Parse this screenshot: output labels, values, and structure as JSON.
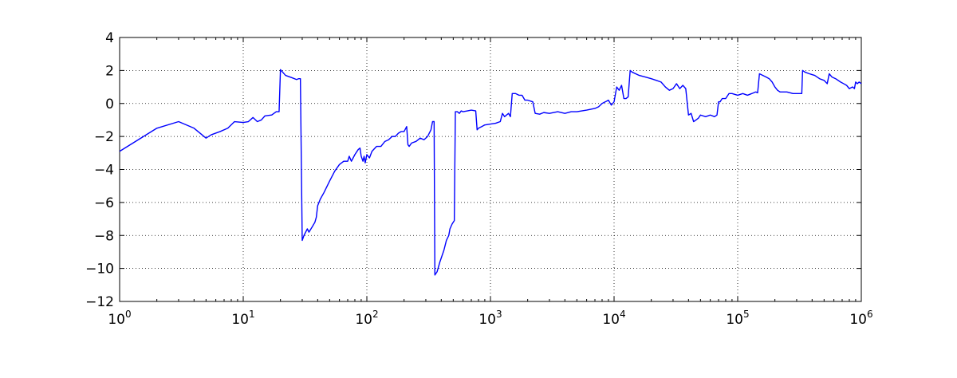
{
  "chart_data": {
    "type": "line",
    "xscale": "log",
    "xlim": [
      1,
      1000000
    ],
    "ylim": [
      -12,
      4
    ],
    "grid": true,
    "title": "",
    "xlabel": "",
    "ylabel": "",
    "line_color": "#0000ff",
    "x_ticks": [
      {
        "value": 1,
        "base": "10",
        "exp": "0"
      },
      {
        "value": 10,
        "base": "10",
        "exp": "1"
      },
      {
        "value": 100,
        "base": "10",
        "exp": "2"
      },
      {
        "value": 1000,
        "base": "10",
        "exp": "3"
      },
      {
        "value": 10000,
        "base": "10",
        "exp": "4"
      },
      {
        "value": 100000,
        "base": "10",
        "exp": "5"
      },
      {
        "value": 1000000,
        "base": "10",
        "exp": "6"
      }
    ],
    "y_ticks": [
      {
        "value": 4,
        "label": "4"
      },
      {
        "value": 2,
        "label": "2"
      },
      {
        "value": 0,
        "label": "0"
      },
      {
        "value": -2,
        "label": "−2"
      },
      {
        "value": -4,
        "label": "−4"
      },
      {
        "value": -6,
        "label": "−6"
      },
      {
        "value": -8,
        "label": "−8"
      },
      {
        "value": -10,
        "label": "−10"
      },
      {
        "value": -12,
        "label": "−12"
      }
    ],
    "series": [
      {
        "points": [
          [
            1,
            -2.9
          ],
          [
            2,
            -1.5
          ],
          [
            3,
            -1.1
          ],
          [
            4,
            -1.5
          ],
          [
            5,
            -2.1
          ],
          [
            5.5,
            -1.9
          ],
          [
            6.5,
            -1.7
          ],
          [
            7.5,
            -1.5
          ],
          [
            8.5,
            -1.1
          ],
          [
            10,
            -1.15
          ],
          [
            11,
            -1.1
          ],
          [
            12,
            -0.85
          ],
          [
            13,
            -1.1
          ],
          [
            14,
            -1.0
          ],
          [
            15,
            -0.75
          ],
          [
            17,
            -0.7
          ],
          [
            18.5,
            -0.5
          ],
          [
            19.5,
            -0.5
          ],
          [
            20,
            2.05
          ],
          [
            22,
            1.7
          ],
          [
            25,
            1.55
          ],
          [
            27,
            1.45
          ],
          [
            28,
            1.5
          ],
          [
            29,
            1.5
          ],
          [
            30,
            -8.3
          ],
          [
            31,
            -8.0
          ],
          [
            33,
            -7.6
          ],
          [
            34,
            -7.8
          ],
          [
            36,
            -7.5
          ],
          [
            38,
            -7.2
          ],
          [
            39,
            -6.9
          ],
          [
            40,
            -6.2
          ],
          [
            42,
            -5.8
          ],
          [
            45,
            -5.4
          ],
          [
            50,
            -4.7
          ],
          [
            55,
            -4.1
          ],
          [
            60,
            -3.7
          ],
          [
            65,
            -3.5
          ],
          [
            70,
            -3.5
          ],
          [
            72,
            -3.2
          ],
          [
            75,
            -3.5
          ],
          [
            80,
            -3.1
          ],
          [
            85,
            -2.8
          ],
          [
            88,
            -2.7
          ],
          [
            90,
            -3.2
          ],
          [
            93,
            -3.5
          ],
          [
            95,
            -3.2
          ],
          [
            97,
            -3.6
          ],
          [
            100,
            -3.1
          ],
          [
            105,
            -3.3
          ],
          [
            110,
            -2.9
          ],
          [
            120,
            -2.6
          ],
          [
            130,
            -2.6
          ],
          [
            140,
            -2.3
          ],
          [
            150,
            -2.2
          ],
          [
            160,
            -2.0
          ],
          [
            170,
            -2.0
          ],
          [
            180,
            -1.8
          ],
          [
            190,
            -1.7
          ],
          [
            200,
            -1.7
          ],
          [
            210,
            -1.4
          ],
          [
            215,
            -2.5
          ],
          [
            220,
            -2.6
          ],
          [
            230,
            -2.4
          ],
          [
            250,
            -2.3
          ],
          [
            270,
            -2.1
          ],
          [
            290,
            -2.2
          ],
          [
            310,
            -2.0
          ],
          [
            330,
            -1.6
          ],
          [
            340,
            -1.1
          ],
          [
            350,
            -1.1
          ],
          [
            355,
            -10.4
          ],
          [
            370,
            -10.2
          ],
          [
            390,
            -9.6
          ],
          [
            420,
            -8.9
          ],
          [
            440,
            -8.3
          ],
          [
            460,
            -8.0
          ],
          [
            470,
            -7.6
          ],
          [
            490,
            -7.3
          ],
          [
            510,
            -7.1
          ],
          [
            520,
            -0.5
          ],
          [
            540,
            -0.5
          ],
          [
            560,
            -0.6
          ],
          [
            580,
            -0.45
          ],
          [
            600,
            -0.5
          ],
          [
            650,
            -0.45
          ],
          [
            700,
            -0.4
          ],
          [
            760,
            -0.45
          ],
          [
            780,
            -1.6
          ],
          [
            800,
            -1.5
          ],
          [
            850,
            -1.4
          ],
          [
            900,
            -1.3
          ],
          [
            1000,
            -1.25
          ],
          [
            1100,
            -1.2
          ],
          [
            1200,
            -1.1
          ],
          [
            1250,
            -0.6
          ],
          [
            1300,
            -0.8
          ],
          [
            1400,
            -0.6
          ],
          [
            1450,
            -0.8
          ],
          [
            1500,
            0.6
          ],
          [
            1600,
            0.6
          ],
          [
            1700,
            0.5
          ],
          [
            1800,
            0.5
          ],
          [
            1900,
            0.2
          ],
          [
            2000,
            0.2
          ],
          [
            2200,
            0.1
          ],
          [
            2300,
            -0.6
          ],
          [
            2500,
            -0.65
          ],
          [
            2700,
            -0.55
          ],
          [
            3000,
            -0.6
          ],
          [
            3500,
            -0.5
          ],
          [
            4000,
            -0.6
          ],
          [
            4500,
            -0.5
          ],
          [
            5000,
            -0.5
          ],
          [
            6000,
            -0.4
          ],
          [
            7000,
            -0.3
          ],
          [
            7500,
            -0.2
          ],
          [
            8000,
            0.0
          ],
          [
            8500,
            0.1
          ],
          [
            9000,
            0.2
          ],
          [
            9500,
            -0.1
          ],
          [
            10000,
            0.1
          ],
          [
            10500,
            1.0
          ],
          [
            11000,
            0.8
          ],
          [
            11500,
            1.1
          ],
          [
            12000,
            0.3
          ],
          [
            12500,
            0.3
          ],
          [
            13000,
            0.4
          ],
          [
            13500,
            2.0
          ],
          [
            14000,
            1.9
          ],
          [
            16000,
            1.7
          ],
          [
            18000,
            1.6
          ],
          [
            20000,
            1.5
          ],
          [
            22000,
            1.4
          ],
          [
            24000,
            1.3
          ],
          [
            26000,
            1.0
          ],
          [
            28000,
            0.8
          ],
          [
            30000,
            0.9
          ],
          [
            32000,
            1.2
          ],
          [
            34000,
            0.9
          ],
          [
            36000,
            1.1
          ],
          [
            38000,
            0.9
          ],
          [
            40000,
            -0.7
          ],
          [
            42000,
            -0.6
          ],
          [
            44000,
            -1.1
          ],
          [
            46000,
            -1.0
          ],
          [
            48000,
            -0.9
          ],
          [
            50000,
            -0.7
          ],
          [
            55000,
            -0.8
          ],
          [
            60000,
            -0.7
          ],
          [
            65000,
            -0.8
          ],
          [
            68000,
            -0.7
          ],
          [
            70000,
            0.1
          ],
          [
            72000,
            0.1
          ],
          [
            75000,
            0.3
          ],
          [
            80000,
            0.3
          ],
          [
            85000,
            0.6
          ],
          [
            90000,
            0.6
          ],
          [
            100000,
            0.5
          ],
          [
            110000,
            0.6
          ],
          [
            120000,
            0.5
          ],
          [
            130000,
            0.6
          ],
          [
            140000,
            0.7
          ],
          [
            145000,
            0.65
          ],
          [
            150000,
            1.8
          ],
          [
            160000,
            1.7
          ],
          [
            170000,
            1.6
          ],
          [
            180000,
            1.5
          ],
          [
            190000,
            1.3
          ],
          [
            200000,
            1.0
          ],
          [
            210000,
            0.8
          ],
          [
            220000,
            0.7
          ],
          [
            250000,
            0.7
          ],
          [
            280000,
            0.6
          ],
          [
            310000,
            0.6
          ],
          [
            330000,
            0.6
          ],
          [
            335000,
            2.0
          ],
          [
            350000,
            1.9
          ],
          [
            380000,
            1.8
          ],
          [
            420000,
            1.7
          ],
          [
            460000,
            1.5
          ],
          [
            500000,
            1.4
          ],
          [
            530000,
            1.2
          ],
          [
            550000,
            1.8
          ],
          [
            580000,
            1.6
          ],
          [
            620000,
            1.5
          ],
          [
            680000,
            1.3
          ],
          [
            720000,
            1.2
          ],
          [
            760000,
            1.1
          ],
          [
            800000,
            0.9
          ],
          [
            850000,
            1.0
          ],
          [
            880000,
            0.9
          ],
          [
            900000,
            1.3
          ],
          [
            930000,
            1.2
          ],
          [
            960000,
            1.3
          ],
          [
            1000000,
            1.2
          ]
        ]
      }
    ]
  }
}
